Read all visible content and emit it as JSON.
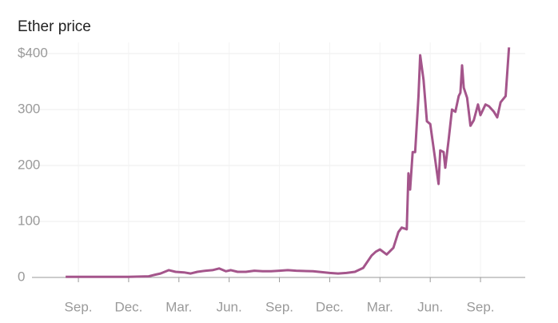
{
  "chart_data": {
    "type": "line",
    "title": "Ether price",
    "x": [
      -0.76,
      0,
      1,
      2,
      3,
      4.2,
      4.6,
      4.9,
      5.4,
      5.8,
      6.3,
      6.7,
      7.1,
      7.6,
      8.0,
      8.4,
      8.8,
      9.1,
      9.5,
      10.0,
      10.5,
      11.0,
      11.5,
      12.0,
      12.5,
      13.0,
      14.0,
      15.0,
      15.5,
      16.0,
      16.5,
      17.0,
      17.5,
      17.75,
      18.0,
      18.4,
      18.8,
      19.1,
      19.3,
      19.6,
      19.7,
      19.8,
      19.95,
      20.1,
      20.3,
      20.4,
      20.6,
      20.8,
      21.0,
      21.2,
      21.5,
      21.6,
      21.8,
      21.9,
      22.1,
      22.3,
      22.5,
      22.7,
      22.8,
      22.9,
      23.0,
      23.2,
      23.4,
      23.6,
      23.85,
      24.0,
      24.3,
      24.5,
      24.8,
      25.0,
      25.2,
      25.5,
      25.7
    ],
    "series": [
      {
        "name": "Ether price",
        "color": "#a4558b",
        "values": [
          1,
          1,
          1,
          1,
          1,
          2,
          5,
          7,
          13,
          10,
          9,
          7,
          10,
          12,
          13,
          16,
          11,
          13,
          10,
          10,
          12,
          11,
          11,
          12,
          13,
          12,
          11,
          8,
          7,
          8,
          10,
          17,
          39,
          46,
          50,
          41,
          53,
          81,
          89,
          86,
          186,
          157,
          224,
          224,
          324,
          397,
          353,
          279,
          274,
          231,
          167,
          227,
          224,
          196,
          246,
          300,
          296,
          324,
          330,
          379,
          339,
          321,
          271,
          281,
          309,
          290,
          309,
          306,
          296,
          286,
          313,
          324,
          411
        ]
      }
    ],
    "xlim": [
      -2.77,
      26.67
    ],
    "xticks": [
      {
        "value": 0,
        "label": "Sep."
      },
      {
        "value": 3,
        "label": "Dec."
      },
      {
        "value": 6,
        "label": "Mar."
      },
      {
        "value": 9,
        "label": "Jun."
      },
      {
        "value": 12,
        "label": "Sep."
      },
      {
        "value": 15,
        "label": "Dec."
      },
      {
        "value": 18,
        "label": "Mar."
      },
      {
        "value": 21,
        "label": "Jun."
      },
      {
        "value": 24,
        "label": "Sep."
      }
    ],
    "ylim": [
      0,
      420
    ],
    "yticks": [
      0,
      100,
      200,
      300,
      {
        "value": 400,
        "label": "$400"
      }
    ],
    "grid": true
  }
}
